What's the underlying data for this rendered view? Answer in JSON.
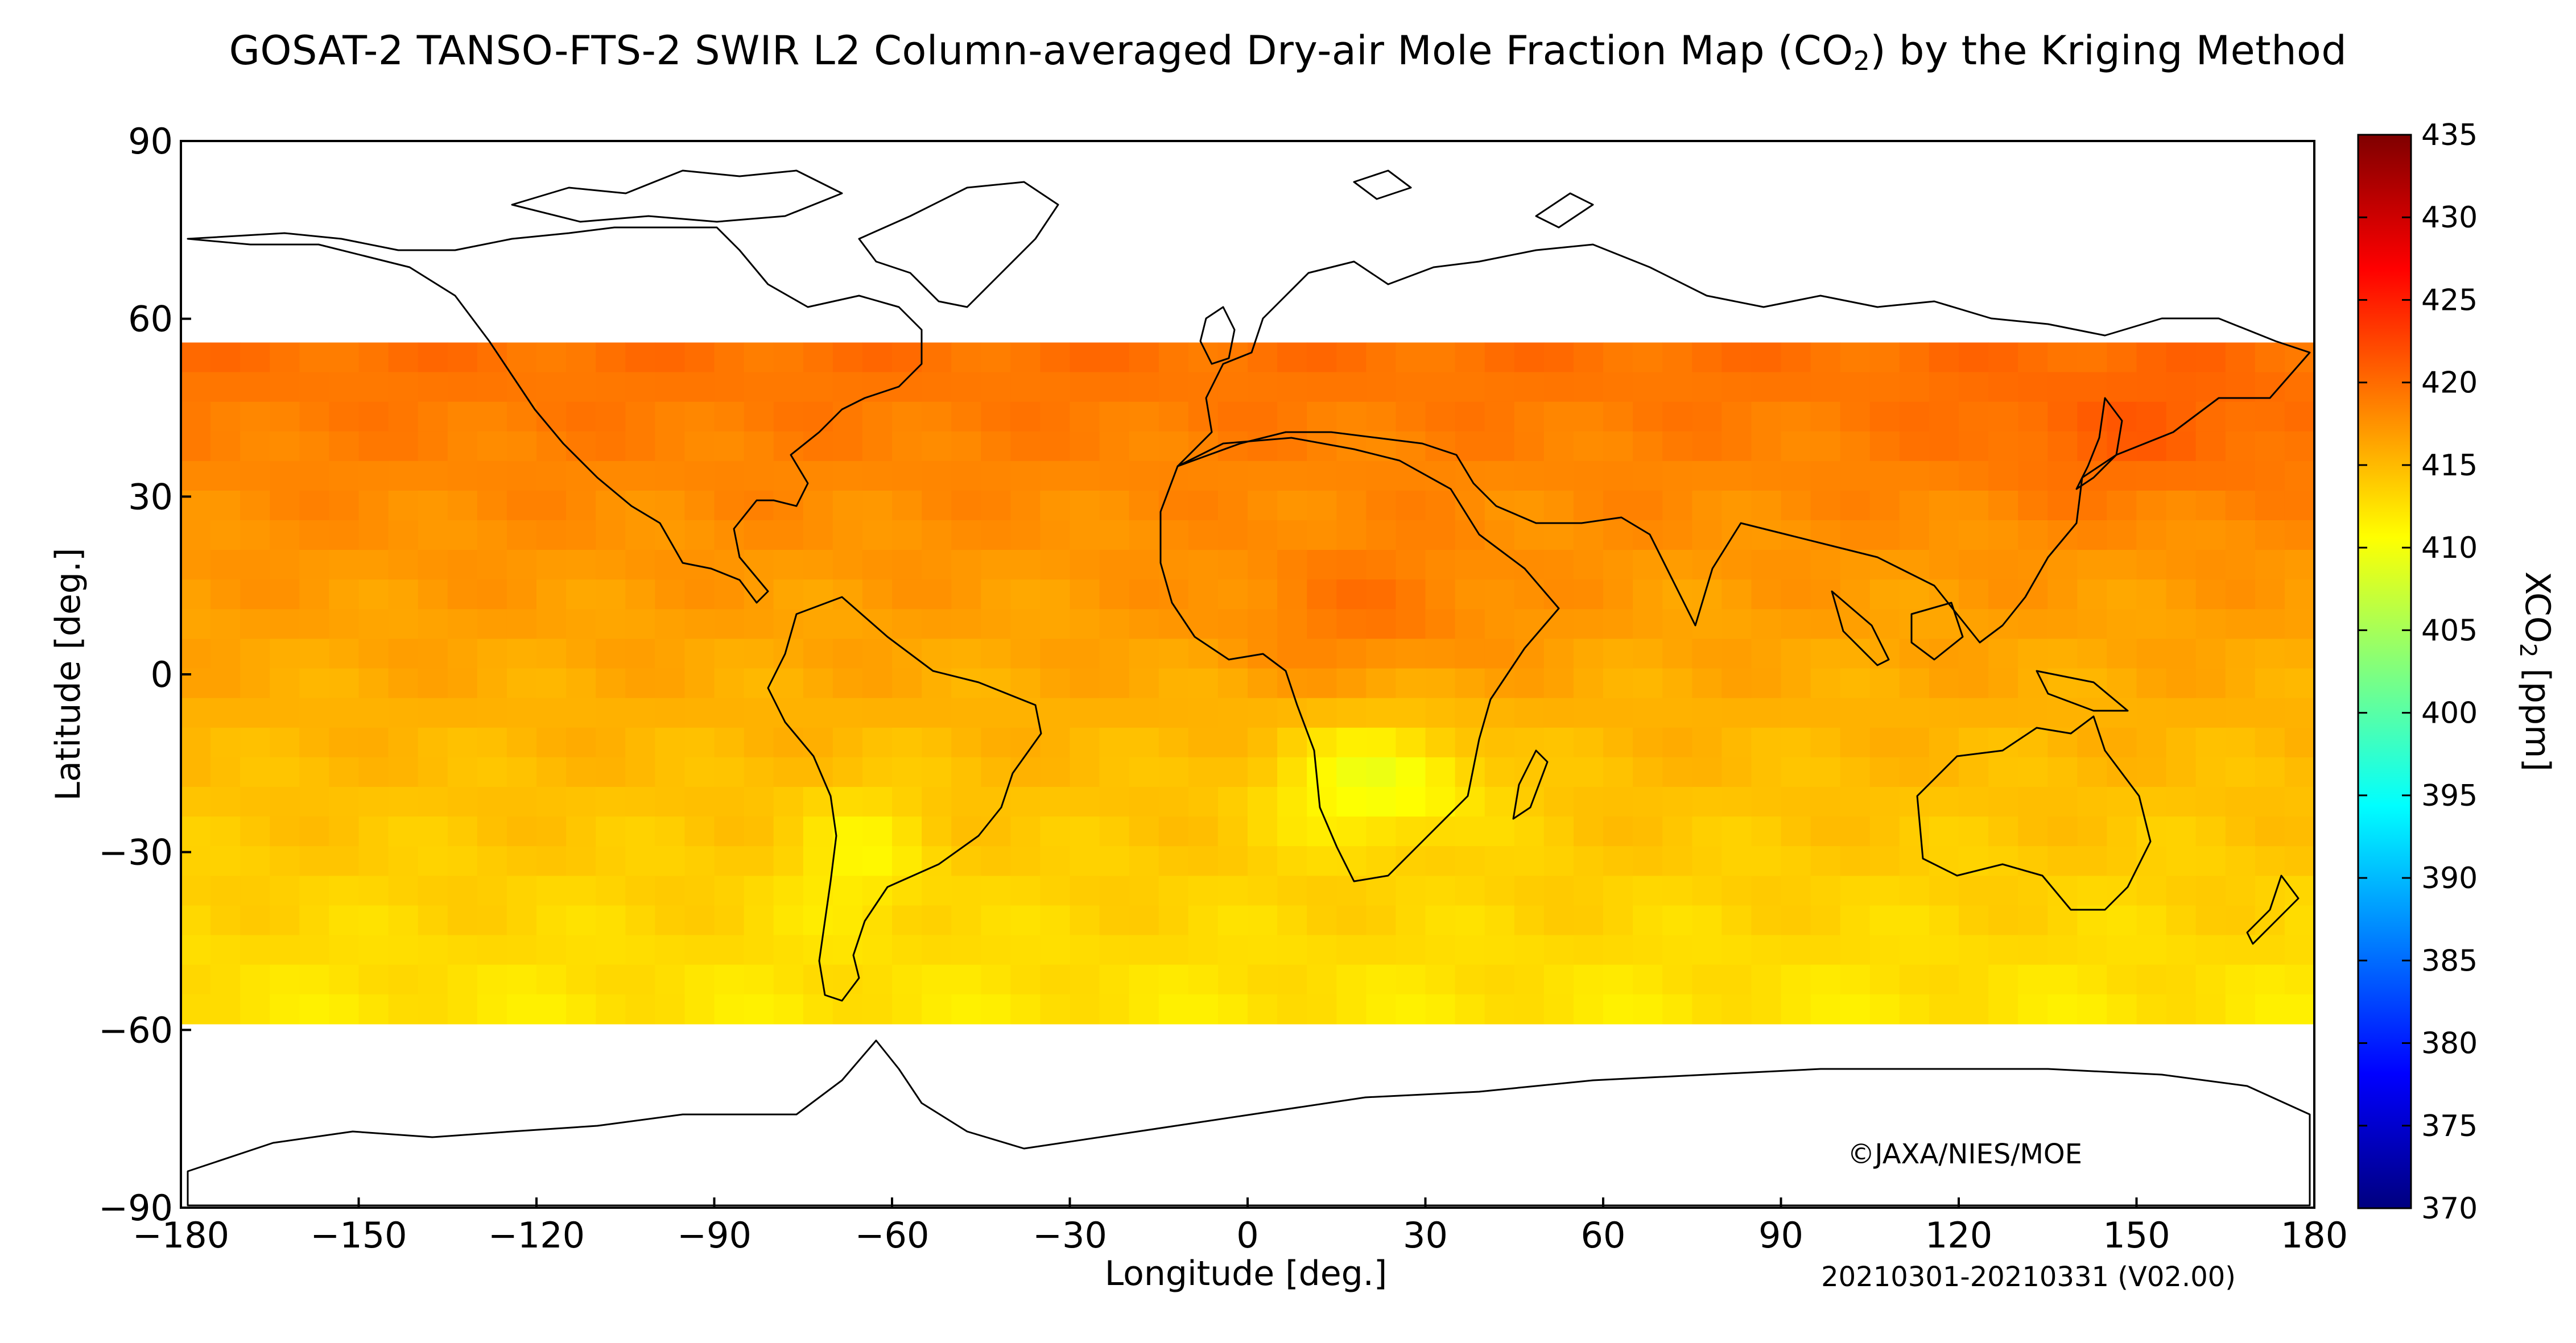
{
  "title": {
    "prefix": "GOSAT-2 TANSO-FTS-2 SWIR L2 Column-averaged Dry-air Mole Fraction Map (CO",
    "subscript": "2",
    "suffix": ") by the Kriging Method"
  },
  "map": {
    "x_axis": {
      "label": "Longitude [deg.]",
      "range": [
        -180,
        180
      ],
      "ticks": [
        "−180",
        "−150",
        "−120",
        "−90",
        "−60",
        "−30",
        "0",
        "30",
        "60",
        "90",
        "120",
        "150",
        "180"
      ]
    },
    "y_axis": {
      "label": "Latitude [deg.]",
      "range": [
        -90,
        90
      ],
      "ticks": [
        "90",
        "60",
        "30",
        "0",
        "−30",
        "−60",
        "−90"
      ]
    },
    "copyright": "©JAXA/NIES/MOE",
    "period": "20210301-20210331 (V02.00)",
    "coverage_lat": [
      -56,
      56
    ],
    "colorscale": [
      "#00007f",
      "#0000ff",
      "#007fff",
      "#00ffff",
      "#7fff7f",
      "#ffff00",
      "#ff7f00",
      "#ff0000",
      "#7f0000"
    ]
  },
  "colorbar": {
    "label_main": "XCO",
    "label_sub": "2",
    "label_unit": " [ppm]",
    "range": [
      370,
      435
    ],
    "ticks": [
      "435",
      "430",
      "425",
      "420",
      "415",
      "410",
      "405",
      "400",
      "395",
      "390",
      "385",
      "380",
      "375",
      "370"
    ]
  },
  "chart_data": {
    "type": "heatmap",
    "title": "GOSAT-2 TANSO-FTS-2 SWIR L2 Column-averaged Dry-air Mole Fraction Map (CO2) by the Kriging Method",
    "xlabel": "Longitude [deg.]",
    "ylabel": "Latitude [deg.]",
    "xlim": [
      -180,
      180
    ],
    "ylim": [
      -90,
      90
    ],
    "zlabel": "XCO2 [ppm]",
    "zlim": [
      370,
      435
    ]
  }
}
